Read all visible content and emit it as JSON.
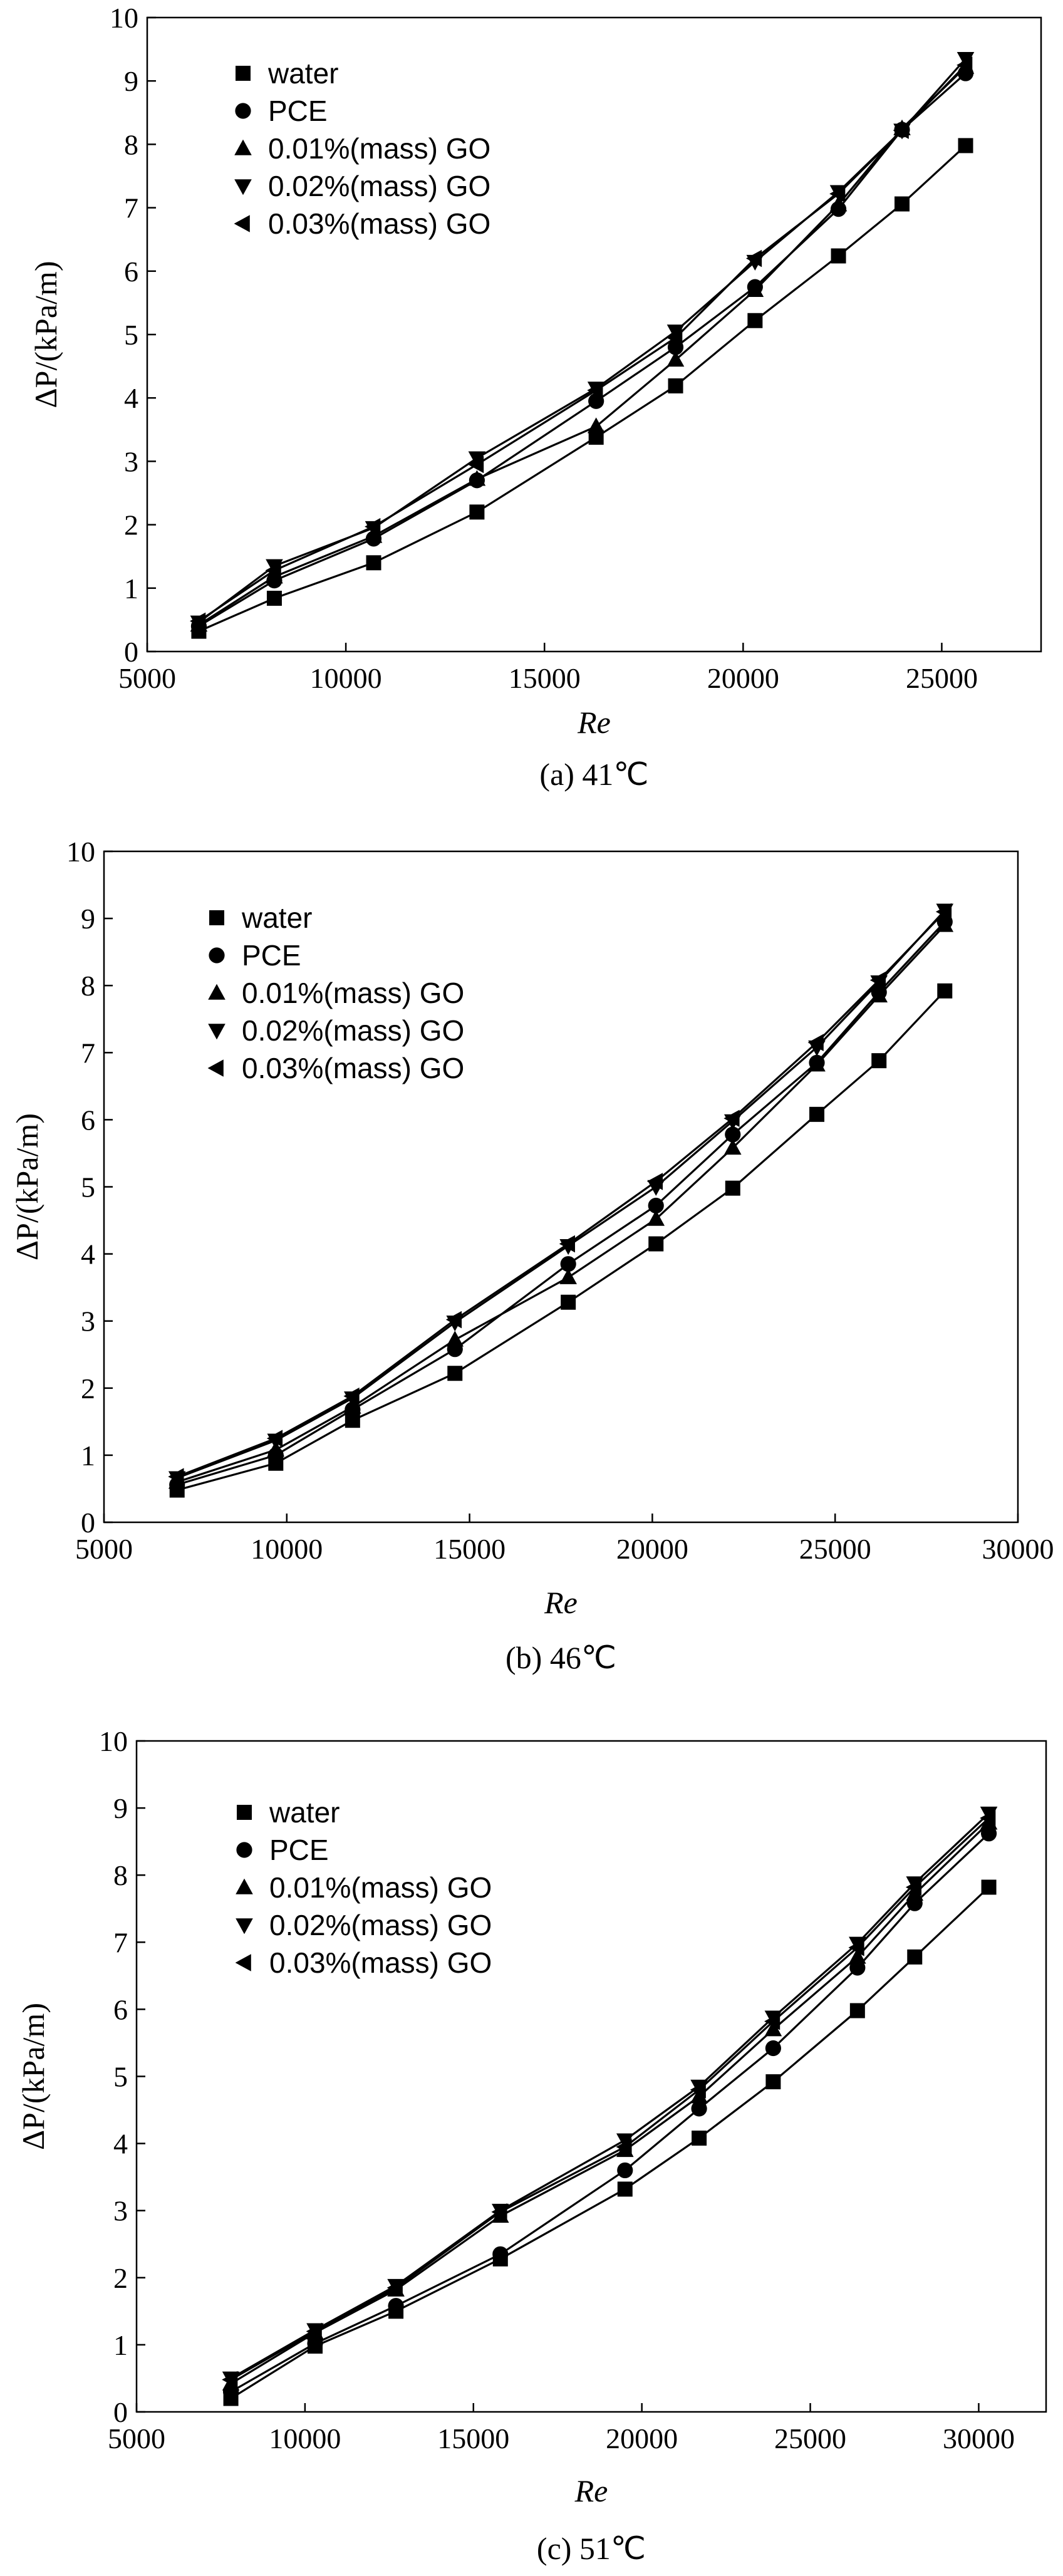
{
  "chart_data": [
    {
      "type": "line",
      "caption": "(a) 41℃",
      "xlabel": "Re",
      "ylabel": "ΔP/(kPa/m)",
      "xlim": [
        5000,
        27500
      ],
      "ylim": [
        0,
        10
      ],
      "xticks": [
        5000,
        10000,
        15000,
        20000,
        25000
      ],
      "yticks": [
        0,
        1,
        2,
        3,
        4,
        5,
        6,
        7,
        8,
        9,
        10
      ],
      "legend_position": "top-left",
      "series": [
        {
          "name": "water",
          "marker": "square",
          "x": [
            6300,
            8200,
            10700,
            13300,
            16300,
            18300,
            20300,
            22400,
            24000,
            25600
          ],
          "y": [
            0.32,
            0.84,
            1.4,
            2.2,
            3.38,
            4.19,
            5.22,
            6.24,
            7.06,
            7.98
          ]
        },
        {
          "name": "PCE",
          "marker": "circle",
          "x": [
            6300,
            8200,
            10700,
            13300,
            16300,
            18300,
            20300,
            22400,
            24000,
            25600
          ],
          "y": [
            0.4,
            1.12,
            1.78,
            2.7,
            3.95,
            4.8,
            5.75,
            6.98,
            8.23,
            9.12
          ]
        },
        {
          "name": "0.01%(mass) GO",
          "marker": "triangle-up",
          "x": [
            6300,
            8200,
            10700,
            13300,
            16300,
            18300,
            20300,
            22400,
            24000,
            25600
          ],
          "y": [
            0.42,
            1.18,
            1.82,
            2.72,
            3.55,
            4.6,
            5.7,
            7.05,
            8.25,
            9.22
          ]
        },
        {
          "name": "0.02%(mass) GO",
          "marker": "triangle-down",
          "x": [
            6300,
            8200,
            10700,
            13300,
            16300,
            18300,
            20300,
            22400,
            24000,
            25600
          ],
          "y": [
            0.46,
            1.35,
            1.95,
            3.05,
            4.15,
            5.05,
            6.15,
            7.25,
            8.22,
            9.35
          ]
        },
        {
          "name": "0.03%(mass) GO",
          "marker": "triangle-left",
          "x": [
            6300,
            8200,
            10700,
            13300,
            16300,
            18300,
            20300,
            22400,
            24000,
            25600
          ],
          "y": [
            0.48,
            1.28,
            1.97,
            2.95,
            4.12,
            4.95,
            6.2,
            7.22,
            8.22,
            9.25
          ]
        }
      ]
    },
    {
      "type": "line",
      "caption": "(b) 46℃",
      "xlabel": "Re",
      "ylabel": "ΔP/(kPa/m)",
      "xlim": [
        5000,
        30000
      ],
      "ylim": [
        0,
        10
      ],
      "xticks": [
        5000,
        10000,
        15000,
        20000,
        25000,
        30000
      ],
      "yticks": [
        0,
        1,
        2,
        3,
        4,
        5,
        6,
        7,
        8,
        9,
        10
      ],
      "legend_position": "top-left",
      "series": [
        {
          "name": "water",
          "marker": "square",
          "x": [
            7000,
            9700,
            11800,
            14600,
            17700,
            20100,
            22200,
            24500,
            26200,
            28000
          ],
          "y": [
            0.48,
            0.88,
            1.52,
            2.22,
            3.28,
            4.15,
            4.98,
            6.08,
            6.88,
            7.92
          ]
        },
        {
          "name": "PCE",
          "marker": "circle",
          "x": [
            7000,
            9700,
            11800,
            14600,
            17700,
            20100,
            22200,
            24500,
            26200,
            28000
          ],
          "y": [
            0.56,
            1.0,
            1.68,
            2.58,
            3.85,
            4.72,
            5.78,
            6.85,
            7.9,
            8.95
          ]
        },
        {
          "name": "0.01%(mass) GO",
          "marker": "triangle-up",
          "x": [
            7000,
            9700,
            11800,
            14600,
            17700,
            20100,
            22200,
            24500,
            26200,
            28000
          ],
          "y": [
            0.6,
            1.08,
            1.72,
            2.72,
            3.65,
            4.52,
            5.58,
            6.82,
            7.85,
            8.9
          ]
        },
        {
          "name": "0.02%(mass) GO",
          "marker": "triangle-down",
          "x": [
            7000,
            9700,
            11800,
            14600,
            17700,
            20100,
            22200,
            24500,
            26200,
            28000
          ],
          "y": [
            0.66,
            1.22,
            1.85,
            2.98,
            4.12,
            5.0,
            5.98,
            7.08,
            8.05,
            9.12
          ]
        },
        {
          "name": "0.03%(mass) GO",
          "marker": "triangle-left",
          "x": [
            7000,
            9700,
            11800,
            14600,
            17700,
            20100,
            22200,
            24500,
            26200,
            28000
          ],
          "y": [
            0.68,
            1.25,
            1.88,
            3.02,
            4.15,
            5.08,
            6.02,
            7.15,
            8.08,
            9.1
          ]
        }
      ]
    },
    {
      "type": "line",
      "caption": "(c) 51℃",
      "xlabel": "Re",
      "ylabel": "ΔP/(kPa/m)",
      "xlim": [
        5000,
        32000
      ],
      "ylim": [
        0,
        10
      ],
      "xticks": [
        5000,
        10000,
        15000,
        20000,
        25000,
        30000
      ],
      "yticks": [
        0,
        1,
        2,
        3,
        4,
        5,
        6,
        7,
        8,
        9,
        10
      ],
      "legend_position": "top-left",
      "series": [
        {
          "name": "water",
          "marker": "square",
          "x": [
            7800,
            10300,
            12700,
            15800,
            19500,
            21700,
            23900,
            26400,
            28100,
            30300
          ],
          "y": [
            0.2,
            0.98,
            1.5,
            2.28,
            3.32,
            4.08,
            4.92,
            5.98,
            6.78,
            7.82
          ]
        },
        {
          "name": "PCE",
          "marker": "circle",
          "x": [
            7800,
            10300,
            12700,
            15800,
            19500,
            21700,
            23900,
            26400,
            28100,
            30300
          ],
          "y": [
            0.3,
            1.02,
            1.58,
            2.35,
            3.6,
            4.52,
            5.42,
            6.62,
            7.58,
            8.62
          ]
        },
        {
          "name": "0.01%(mass) GO",
          "marker": "triangle-up",
          "x": [
            7800,
            10300,
            12700,
            15800,
            19500,
            21700,
            23900,
            26400,
            28100,
            30300
          ],
          "y": [
            0.42,
            1.18,
            1.82,
            2.92,
            3.9,
            4.7,
            5.7,
            6.78,
            7.72,
            8.78
          ]
        },
        {
          "name": "0.02%(mass) GO",
          "marker": "triangle-down",
          "x": [
            7800,
            10300,
            12700,
            15800,
            19500,
            21700,
            23900,
            26400,
            28100,
            30300
          ],
          "y": [
            0.5,
            1.22,
            1.88,
            3.0,
            4.05,
            4.85,
            5.88,
            6.98,
            7.88,
            8.92
          ]
        },
        {
          "name": "0.03%(mass) GO",
          "marker": "triangle-left",
          "x": [
            7800,
            10300,
            12700,
            15800,
            19500,
            21700,
            23900,
            26400,
            28100,
            30300
          ],
          "y": [
            0.48,
            1.2,
            1.85,
            2.98,
            3.95,
            4.8,
            5.82,
            6.92,
            7.82,
            8.85
          ]
        }
      ]
    }
  ]
}
